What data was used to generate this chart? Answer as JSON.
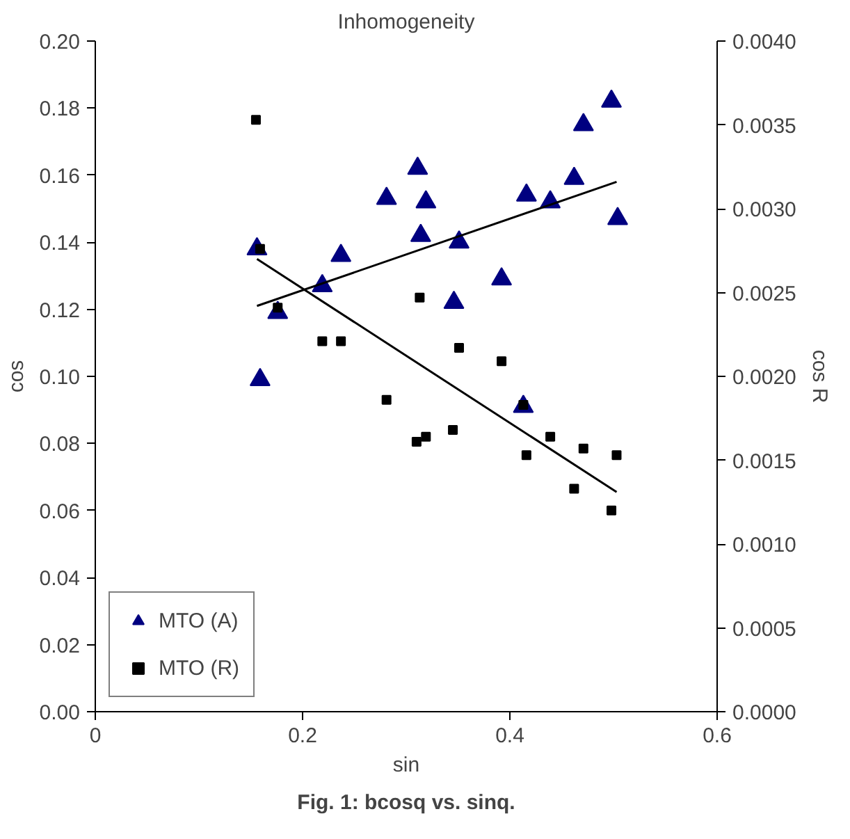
{
  "chart_data": {
    "type": "scatter",
    "title": "Inhomogeneity",
    "xlabel": "sin",
    "ylabel": "cos",
    "y2label": "cos R",
    "annotations": [
      "Fig. 1: bcosq vs. sinq."
    ],
    "xlim": [
      0,
      0.6
    ],
    "xticks": [
      0,
      0.2,
      0.4,
      0.6
    ],
    "ylim": [
      0,
      0.2
    ],
    "yticks": [
      {
        "value": 0,
        "label": "0.00"
      },
      {
        "value": 0.02,
        "label": "0.02"
      },
      {
        "value": 0.04,
        "label": "0.04"
      },
      {
        "value": 0.06,
        "label": "0.06"
      },
      {
        "value": 0.08,
        "label": "0.08"
      },
      {
        "value": 0.1,
        "label": "0.10"
      },
      {
        "value": 0.12,
        "label": "0.12"
      },
      {
        "value": 0.14,
        "label": "0.14"
      },
      {
        "value": 0.16,
        "label": "0.16"
      },
      {
        "value": 0.18,
        "label": "0.18"
      },
      {
        "value": 0.2,
        "label": "0.20"
      }
    ],
    "y2lim": [
      0,
      0.004
    ],
    "y2ticks": [
      {
        "value": 0,
        "label": "0.0000"
      },
      {
        "value": 0.0005,
        "label": "0.0005"
      },
      {
        "value": 0.001,
        "label": "0.0010"
      },
      {
        "value": 0.0015,
        "label": "0.0015"
      },
      {
        "value": 0.002,
        "label": "0.0020"
      },
      {
        "value": 0.0025,
        "label": "0.0025"
      },
      {
        "value": 0.003,
        "label": "0.0030"
      },
      {
        "value": 0.0035,
        "label": "0.0035"
      },
      {
        "value": 0.004,
        "label": "0.0040"
      }
    ],
    "grid": false,
    "legend": "bottom left",
    "series": [
      {
        "name": "MTO (A)",
        "marker": "triangle",
        "color": "#000080",
        "x": [
          0.156,
          0.159,
          0.176,
          0.219,
          0.237,
          0.281,
          0.311,
          0.314,
          0.319,
          0.351,
          0.346,
          0.392,
          0.413,
          0.416,
          0.439,
          0.462,
          0.471,
          0.498,
          0.504
        ],
        "values": [
          0.138,
          0.099,
          0.119,
          0.127,
          0.136,
          0.153,
          0.162,
          0.142,
          0.152,
          0.14,
          0.122,
          0.129,
          0.091,
          0.154,
          0.152,
          0.159,
          0.175,
          0.182,
          0.147
        ]
      },
      {
        "name": "MTO (R)",
        "marker": "square",
        "color": "#000000",
        "axis": "y2",
        "x": [
          0.155,
          0.159,
          0.176,
          0.219,
          0.237,
          0.281,
          0.313,
          0.351,
          0.392,
          0.413,
          0.31,
          0.319,
          0.345,
          0.416,
          0.439,
          0.462,
          0.471,
          0.498,
          0.503
        ],
        "values": [
          0.00353,
          0.00276,
          0.00241,
          0.00221,
          0.00221,
          0.00186,
          0.00247,
          0.00217,
          0.00209,
          0.00183,
          0.00161,
          0.00164,
          0.00168,
          0.00153,
          0.00164,
          0.00133,
          0.00157,
          0.0012,
          0.00153
        ]
      },
      {
        "type": "line",
        "color": "#000000",
        "x": [
          0.156,
          0.503
        ],
        "values": [
          0.121,
          0.158
        ]
      },
      {
        "type": "line",
        "color": "#000000",
        "axis": "y2",
        "x": [
          0.156,
          0.503
        ],
        "values": [
          0.0027,
          0.00131
        ]
      }
    ]
  }
}
